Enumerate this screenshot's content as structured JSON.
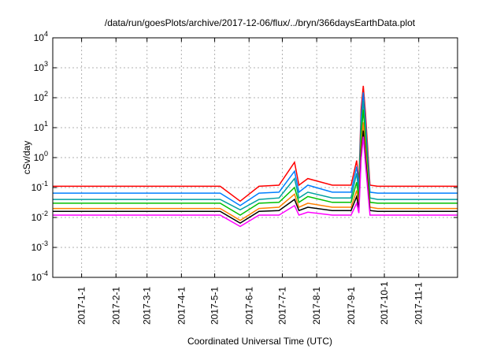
{
  "chart_data": {
    "type": "line",
    "title": "/data/run/goesPlots/archive/2017-12-06/flux/../bryn/366daysEarthData.plot",
    "xlabel": "Coordinated Universal Time (UTC)",
    "ylabel": "cSv/day",
    "y_scale": "log",
    "ylim": [
      0.0001,
      10000
    ],
    "xlim": [
      "2016-12-06",
      "2017-12-06"
    ],
    "grid": true,
    "legend": "none",
    "x_ticks": [
      "2017-1-1",
      "2017-2-1",
      "2017-3-1",
      "2017-4-1",
      "2017-5-1",
      "2017-6-1",
      "2017-7-1",
      "2017-8-1",
      "2017-9-1",
      "2017-10-1",
      "2017-11-1"
    ],
    "y_ticks": [
      {
        "base": "10",
        "exp": "-4",
        "value": 0.0001
      },
      {
        "base": "10",
        "exp": "-3",
        "value": 0.001
      },
      {
        "base": "10",
        "exp": "-2",
        "value": 0.01
      },
      {
        "base": "10",
        "exp": "-1",
        "value": 0.1
      },
      {
        "base": "10",
        "exp": "0",
        "value": 1
      },
      {
        "base": "10",
        "exp": "1",
        "value": 10
      },
      {
        "base": "10",
        "exp": "2",
        "value": 100
      },
      {
        "base": "10",
        "exp": "3",
        "value": 1000
      },
      {
        "base": "10",
        "exp": "4",
        "value": 10000
      }
    ],
    "series": [
      {
        "color": "#ff0000",
        "x": [
          "2016-12-06",
          "2017-01-15",
          "2017-03-01",
          "2017-04-15",
          "2017-05-06",
          "2017-05-24",
          "2017-06-10",
          "2017-06-28",
          "2017-07-12",
          "2017-07-16",
          "2017-07-24",
          "2017-08-15",
          "2017-09-01",
          "2017-09-06",
          "2017-09-08",
          "2017-09-10",
          "2017-09-12",
          "2017-09-14",
          "2017-09-18",
          "2017-09-25",
          "2017-10-15",
          "2017-11-15",
          "2017-12-06"
        ],
        "y": [
          0.11,
          0.11,
          0.11,
          0.11,
          0.11,
          0.035,
          0.11,
          0.12,
          0.7,
          0.12,
          0.2,
          0.12,
          0.12,
          0.8,
          0.15,
          40,
          250,
          30,
          0.12,
          0.11,
          0.11,
          0.11,
          0.11
        ]
      },
      {
        "color": "#007fff",
        "x": [
          "2016-12-06",
          "2017-01-15",
          "2017-03-01",
          "2017-04-15",
          "2017-05-06",
          "2017-05-24",
          "2017-06-10",
          "2017-06-28",
          "2017-07-12",
          "2017-07-16",
          "2017-07-24",
          "2017-08-15",
          "2017-09-01",
          "2017-09-06",
          "2017-09-08",
          "2017-09-10",
          "2017-09-12",
          "2017-09-14",
          "2017-09-18",
          "2017-09-25",
          "2017-10-15",
          "2017-11-15",
          "2017-12-06"
        ],
        "y": [
          0.065,
          0.065,
          0.065,
          0.065,
          0.065,
          0.025,
          0.065,
          0.07,
          0.35,
          0.07,
          0.12,
          0.07,
          0.07,
          0.5,
          0.1,
          20,
          150,
          15,
          0.07,
          0.065,
          0.065,
          0.065,
          0.065
        ]
      },
      {
        "color": "#00a0a0",
        "x": [
          "2016-12-06",
          "2017-01-15",
          "2017-03-01",
          "2017-04-15",
          "2017-05-06",
          "2017-05-24",
          "2017-06-10",
          "2017-06-28",
          "2017-07-12",
          "2017-07-16",
          "2017-07-24",
          "2017-08-15",
          "2017-09-01",
          "2017-09-06",
          "2017-09-08",
          "2017-09-10",
          "2017-09-12",
          "2017-09-14",
          "2017-09-18",
          "2017-09-25",
          "2017-10-15",
          "2017-11-15",
          "2017-12-06"
        ],
        "y": [
          0.04,
          0.04,
          0.04,
          0.04,
          0.04,
          0.018,
          0.04,
          0.045,
          0.2,
          0.045,
          0.07,
          0.045,
          0.045,
          0.3,
          0.06,
          10,
          80,
          8,
          0.045,
          0.04,
          0.04,
          0.04,
          0.04
        ]
      },
      {
        "color": "#00c000",
        "x": [
          "2016-12-06",
          "2017-01-15",
          "2017-03-01",
          "2017-04-15",
          "2017-05-06",
          "2017-05-24",
          "2017-06-10",
          "2017-06-28",
          "2017-07-12",
          "2017-07-16",
          "2017-07-24",
          "2017-08-15",
          "2017-09-01",
          "2017-09-06",
          "2017-09-08",
          "2017-09-10",
          "2017-09-12",
          "2017-09-14",
          "2017-09-18",
          "2017-09-25",
          "2017-10-15",
          "2017-11-15",
          "2017-12-06"
        ],
        "y": [
          0.03,
          0.03,
          0.03,
          0.03,
          0.03,
          0.012,
          0.03,
          0.032,
          0.1,
          0.032,
          0.05,
          0.032,
          0.032,
          0.15,
          0.04,
          5,
          40,
          4,
          0.032,
          0.03,
          0.03,
          0.03,
          0.03
        ]
      },
      {
        "color": "#ff8000",
        "x": [
          "2016-12-06",
          "2017-01-15",
          "2017-03-01",
          "2017-04-15",
          "2017-05-06",
          "2017-05-24",
          "2017-06-10",
          "2017-06-28",
          "2017-07-12",
          "2017-07-16",
          "2017-07-24",
          "2017-08-15",
          "2017-09-01",
          "2017-09-06",
          "2017-09-08",
          "2017-09-10",
          "2017-09-12",
          "2017-09-14",
          "2017-09-18",
          "2017-09-25",
          "2017-10-15",
          "2017-11-15",
          "2017-12-06"
        ],
        "y": [
          0.02,
          0.02,
          0.02,
          0.02,
          0.02,
          0.008,
          0.02,
          0.022,
          0.06,
          0.022,
          0.03,
          0.022,
          0.022,
          0.08,
          0.025,
          2,
          15,
          2,
          0.022,
          0.02,
          0.02,
          0.02,
          0.02
        ]
      },
      {
        "color": "#000000",
        "x": [
          "2016-12-06",
          "2017-01-15",
          "2017-03-01",
          "2017-04-15",
          "2017-05-06",
          "2017-05-24",
          "2017-06-10",
          "2017-06-28",
          "2017-07-12",
          "2017-07-16",
          "2017-07-24",
          "2017-08-15",
          "2017-09-01",
          "2017-09-06",
          "2017-09-08",
          "2017-09-10",
          "2017-09-12",
          "2017-09-14",
          "2017-09-18",
          "2017-09-25",
          "2017-10-15",
          "2017-11-15",
          "2017-12-06"
        ],
        "y": [
          0.016,
          0.016,
          0.016,
          0.016,
          0.016,
          0.0065,
          0.016,
          0.017,
          0.04,
          0.017,
          0.022,
          0.017,
          0.017,
          0.05,
          0.02,
          1.2,
          8,
          1,
          0.017,
          0.016,
          0.016,
          0.016,
          0.016
        ]
      },
      {
        "color": "#ff00ff",
        "x": [
          "2016-12-06",
          "2017-01-15",
          "2017-03-01",
          "2017-04-15",
          "2017-05-06",
          "2017-05-24",
          "2017-06-10",
          "2017-06-28",
          "2017-07-12",
          "2017-07-16",
          "2017-07-24",
          "2017-08-15",
          "2017-09-01",
          "2017-09-06",
          "2017-09-08",
          "2017-09-10",
          "2017-09-12",
          "2017-09-14",
          "2017-09-18",
          "2017-09-25",
          "2017-10-15",
          "2017-11-15",
          "2017-12-06"
        ],
        "y": [
          0.012,
          0.012,
          0.012,
          0.012,
          0.012,
          0.005,
          0.012,
          0.012,
          0.025,
          0.012,
          0.015,
          0.012,
          0.012,
          0.03,
          0.014,
          0.8,
          5,
          0.6,
          0.012,
          0.012,
          0.012,
          0.012,
          0.012
        ]
      }
    ]
  }
}
